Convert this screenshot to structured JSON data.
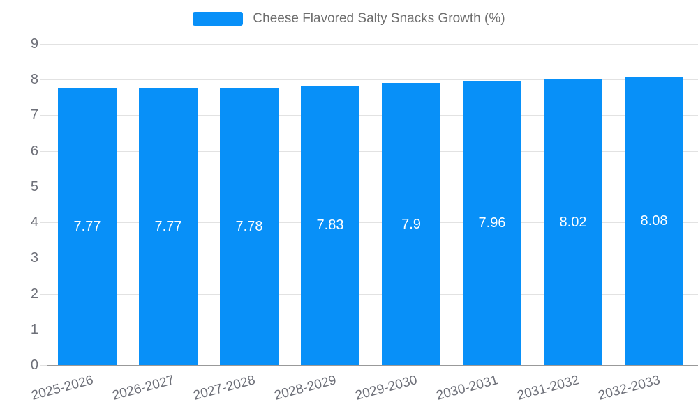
{
  "chart_data": {
    "type": "bar",
    "title": "Cheese Flavored Salty Snacks Growth (%)",
    "categories": [
      "2025-2026",
      "2026-2027",
      "2027-2028",
      "2028-2029",
      "2029-2030",
      "2030-2031",
      "2031-2032",
      "2032-2033"
    ],
    "values": [
      7.77,
      7.77,
      7.78,
      7.83,
      7.9,
      7.96,
      8.02,
      8.08
    ],
    "value_labels": [
      "7.77",
      "7.77",
      "7.78",
      "7.83",
      "7.9",
      "7.96",
      "8.02",
      "8.08"
    ],
    "xlabel": "",
    "ylabel": "",
    "ylim": [
      0,
      9
    ],
    "y_ticks": [
      0,
      1,
      2,
      3,
      4,
      5,
      6,
      7,
      8,
      9
    ],
    "grid": true,
    "legend_position": "top",
    "x_label_rotation_deg": -15,
    "colors": {
      "bar": "#0890f8",
      "value_label": "#ffffff",
      "axis_line": "#999999",
      "gridline": "#e2e2e2",
      "tick_label": "#6e7079",
      "legend_text": "#6e6e6e",
      "background": "#ffffff"
    }
  }
}
